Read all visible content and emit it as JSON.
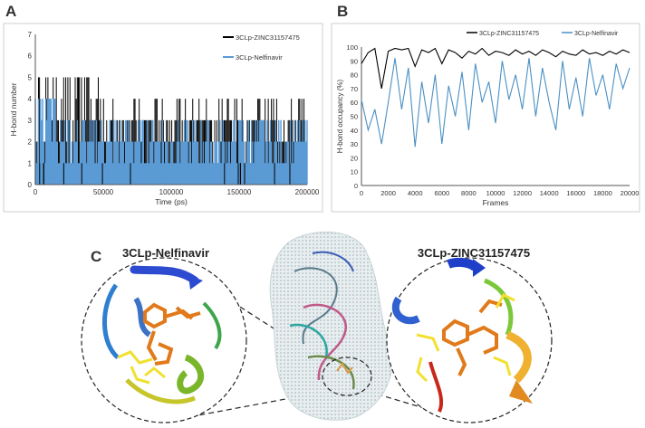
{
  "panels": {
    "a": "A",
    "b": "B",
    "c": "C"
  },
  "chart_data": [
    {
      "panel": "A",
      "type": "bar",
      "xlabel": "Time (ps)",
      "ylabel": "H-bond number",
      "xlim": [
        0,
        200000
      ],
      "ylim": [
        0,
        7
      ],
      "x_ticks": [
        0,
        50000,
        100000,
        150000,
        200000
      ],
      "y_ticks": [
        0,
        1,
        2,
        3,
        4,
        5,
        6,
        7
      ],
      "grid": false,
      "legend_position": "top-right",
      "series": [
        {
          "name": "3CLp-ZINC31157475",
          "color": "#000000",
          "typical_range": [
            2,
            4
          ],
          "max": 5,
          "min": 0
        },
        {
          "name": "3CLp-Nelfinavir",
          "color": "#5b9bd5",
          "typical_range": [
            1,
            3
          ],
          "max": 4,
          "min": 0
        }
      ]
    },
    {
      "panel": "B",
      "type": "line",
      "xlabel": "Frames",
      "ylabel": "H-bond occupancy (%)",
      "xlim": [
        0,
        20000
      ],
      "ylim": [
        0,
        100
      ],
      "x_ticks": [
        0,
        2000,
        4000,
        6000,
        8000,
        10000,
        12000,
        14000,
        16000,
        18000,
        20000
      ],
      "y_ticks": [
        0,
        10,
        20,
        30,
        40,
        50,
        60,
        70,
        80,
        90,
        100
      ],
      "grid": false,
      "legend_position": "top",
      "series": [
        {
          "name": "3CLp-ZINC31157475",
          "color": "#000000",
          "x": [
            0,
            500,
            1000,
            1500,
            2000,
            2500,
            3000,
            3500,
            4000,
            4500,
            5000,
            5500,
            6000,
            6500,
            7000,
            7500,
            8000,
            8500,
            9000,
            9500,
            10000,
            10500,
            11000,
            11500,
            12000,
            12500,
            13000,
            13500,
            14000,
            14500,
            15000,
            15500,
            16000,
            16500,
            17000,
            17500,
            18000,
            18500,
            19000,
            19500,
            20000
          ],
          "values": [
            88,
            96,
            99,
            70,
            97,
            99,
            98,
            99,
            86,
            98,
            96,
            99,
            88,
            98,
            96,
            92,
            97,
            95,
            99,
            94,
            97,
            96,
            94,
            98,
            95,
            97,
            94,
            98,
            96,
            93,
            97,
            95,
            94,
            98,
            95,
            96,
            94,
            97,
            95,
            98,
            96
          ]
        },
        {
          "name": "3CLp-Nelfinavir",
          "color": "#4a90c4",
          "x": [
            0,
            500,
            1000,
            1500,
            2000,
            2500,
            3000,
            3500,
            4000,
            4500,
            5000,
            5500,
            6000,
            6500,
            7000,
            7500,
            8000,
            8500,
            9000,
            9500,
            10000,
            10500,
            11000,
            11500,
            12000,
            12500,
            13000,
            13500,
            14000,
            14500,
            15000,
            15500,
            16000,
            16500,
            17000,
            17500,
            18000,
            18500,
            19000,
            19500,
            20000
          ],
          "values": [
            62,
            40,
            55,
            30,
            60,
            92,
            55,
            85,
            28,
            75,
            45,
            80,
            30,
            72,
            50,
            82,
            40,
            88,
            60,
            75,
            45,
            90,
            62,
            80,
            55,
            92,
            50,
            85,
            60,
            40,
            90,
            55,
            78,
            50,
            92,
            65,
            80,
            55,
            88,
            70,
            85
          ]
        }
      ]
    }
  ],
  "structure": {
    "left_label": "3CLp-Nelfinavir",
    "right_label": "3CLp-ZINC31157475"
  }
}
